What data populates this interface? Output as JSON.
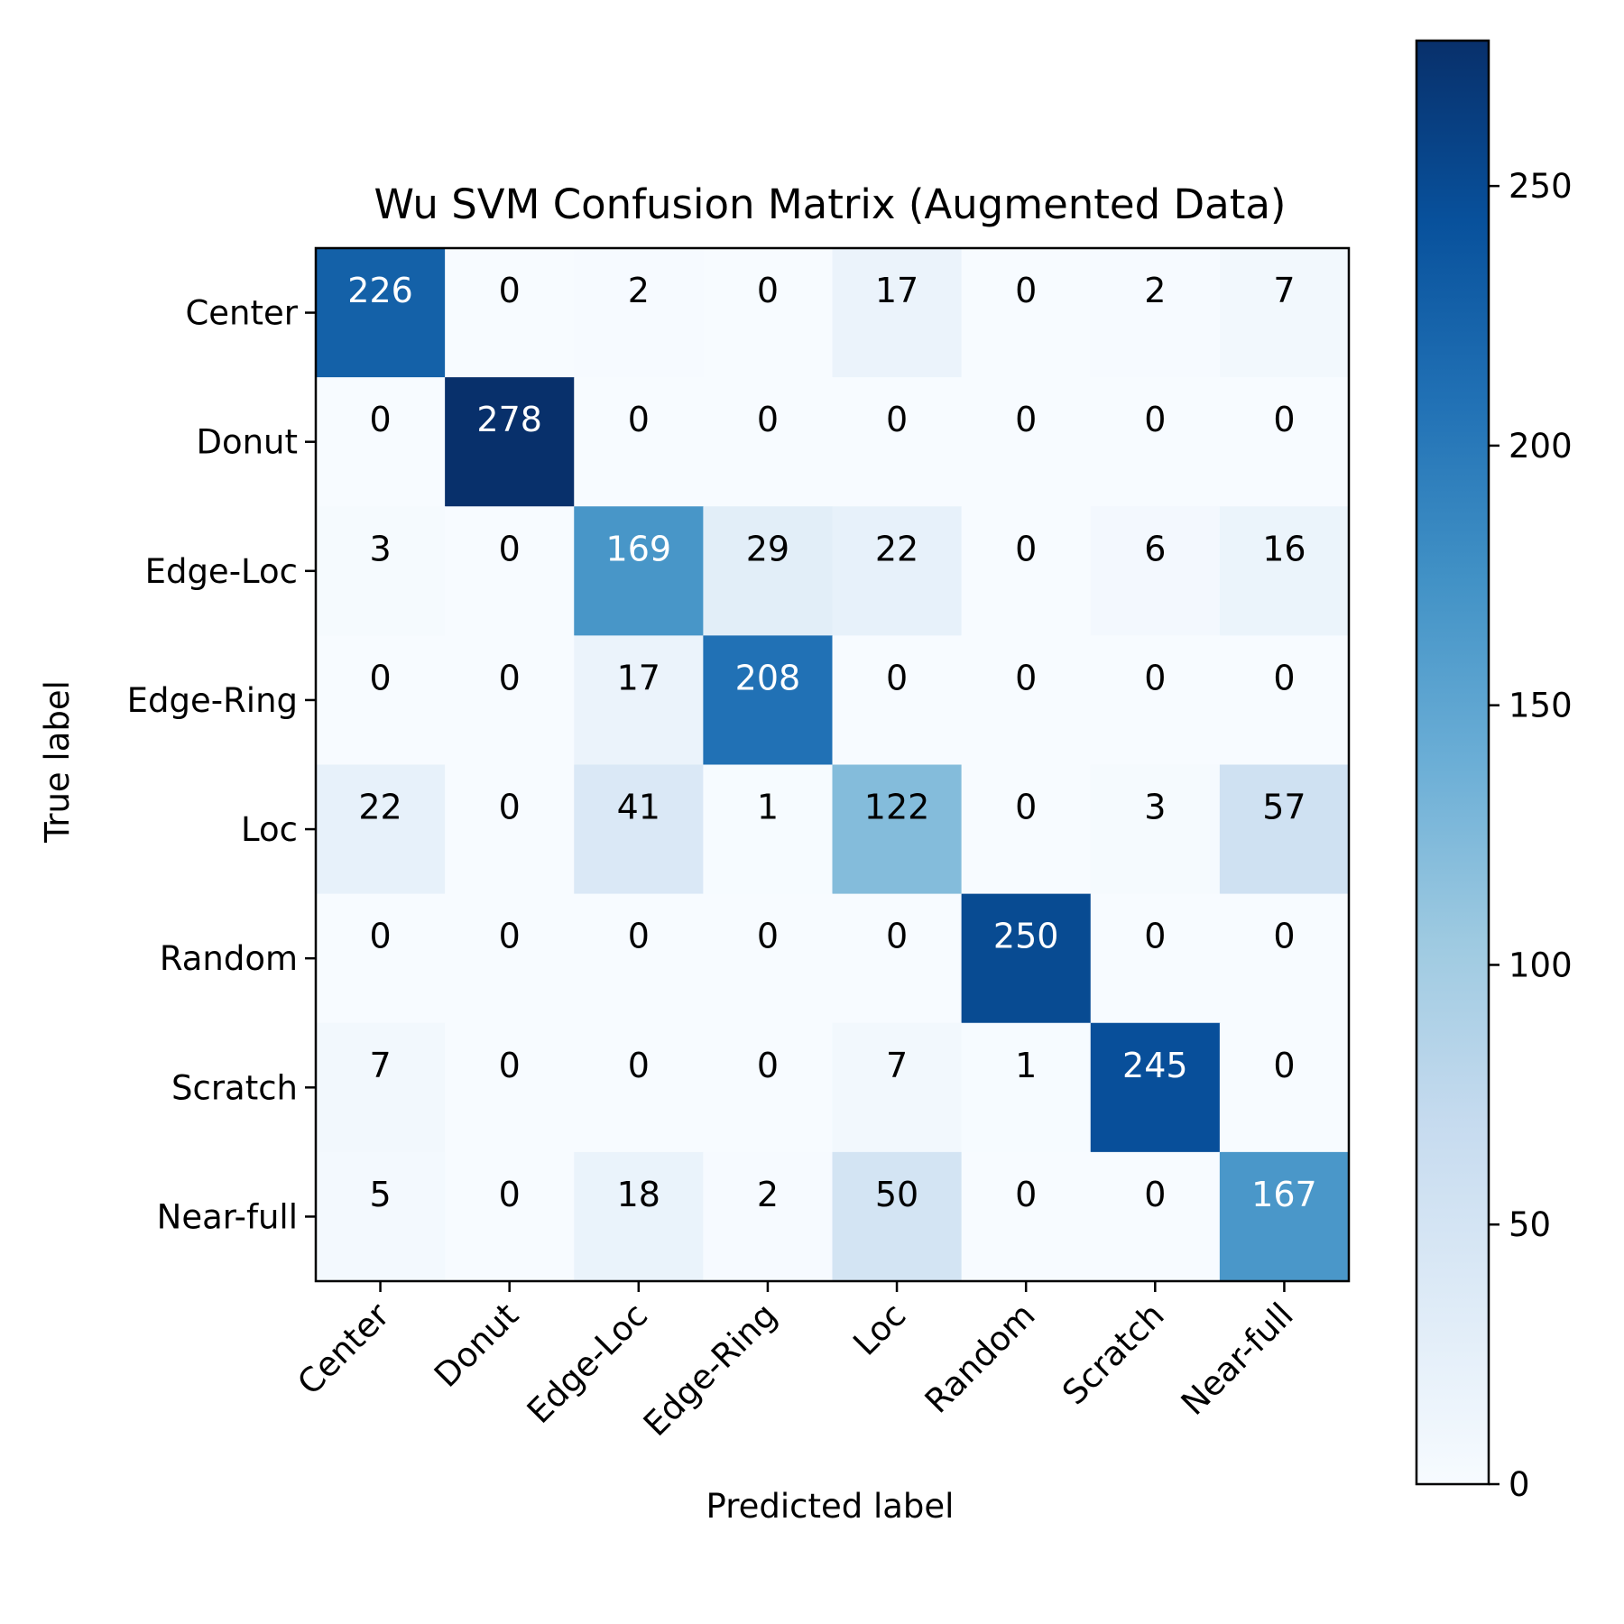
{
  "chart_data": {
    "type": "heatmap",
    "title": "Wu SVM Confusion Matrix (Augmented Data)",
    "xlabel": "Predicted label",
    "ylabel": "True label",
    "x_categories": [
      "Center",
      "Donut",
      "Edge-Loc",
      "Edge-Ring",
      "Loc",
      "Random",
      "Scratch",
      "Near-full"
    ],
    "y_categories": [
      "Center",
      "Donut",
      "Edge-Loc",
      "Edge-Ring",
      "Loc",
      "Random",
      "Scratch",
      "Near-full"
    ],
    "values": [
      [
        226,
        0,
        2,
        0,
        17,
        0,
        2,
        7
      ],
      [
        0,
        278,
        0,
        0,
        0,
        0,
        0,
        0
      ],
      [
        3,
        0,
        169,
        29,
        22,
        0,
        6,
        16
      ],
      [
        0,
        0,
        17,
        208,
        0,
        0,
        0,
        0
      ],
      [
        22,
        0,
        41,
        1,
        122,
        0,
        3,
        57
      ],
      [
        0,
        0,
        0,
        0,
        0,
        250,
        0,
        0
      ],
      [
        7,
        0,
        0,
        0,
        7,
        1,
        245,
        0
      ],
      [
        5,
        0,
        18,
        2,
        50,
        0,
        0,
        167
      ]
    ],
    "colormap": "Blues",
    "value_range": [
      0,
      278
    ],
    "colorbar": {
      "ticks": [
        "0",
        "50",
        "100",
        "150",
        "200",
        "250"
      ],
      "placement": "right"
    },
    "grid": false
  }
}
